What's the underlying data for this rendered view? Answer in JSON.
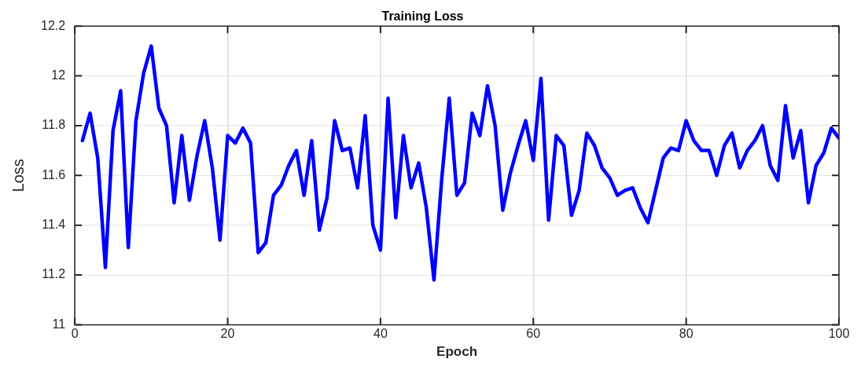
{
  "chart_data": {
    "type": "line",
    "title": "Training Loss",
    "xlabel": "Epoch",
    "ylabel": "Loss",
    "x": [
      1,
      2,
      3,
      4,
      5,
      6,
      7,
      8,
      9,
      10,
      11,
      12,
      13,
      14,
      15,
      16,
      17,
      18,
      19,
      20,
      21,
      22,
      23,
      24,
      25,
      26,
      27,
      28,
      29,
      30,
      31,
      32,
      33,
      34,
      35,
      36,
      37,
      38,
      39,
      40,
      41,
      42,
      43,
      44,
      45,
      46,
      47,
      48,
      49,
      50,
      51,
      52,
      53,
      54,
      55,
      56,
      57,
      58,
      59,
      60,
      61,
      62,
      63,
      64,
      65,
      66,
      67,
      68,
      69,
      70,
      71,
      72,
      73,
      74,
      75,
      76,
      77,
      78,
      79,
      80,
      81,
      82,
      83,
      84,
      85,
      86,
      87,
      88,
      89,
      90,
      91,
      92,
      93,
      94,
      95,
      96,
      97,
      98,
      99,
      100
    ],
    "series": [
      {
        "color": "#0000ff",
        "values": [
          11.74,
          11.85,
          11.67,
          11.23,
          11.78,
          11.94,
          11.31,
          11.82,
          12.01,
          12.12,
          11.87,
          11.8,
          11.49,
          11.76,
          11.5,
          11.68,
          11.82,
          11.63,
          11.34,
          11.76,
          11.73,
          11.79,
          11.73,
          11.29,
          11.33,
          11.52,
          11.56,
          11.64,
          11.7,
          11.52,
          11.74,
          11.38,
          11.51,
          11.82,
          11.7,
          11.71,
          11.55,
          11.84,
          11.4,
          11.3,
          11.91,
          11.43,
          11.76,
          11.55,
          11.65,
          11.47,
          11.18,
          11.58,
          11.91,
          11.52,
          11.57,
          11.85,
          11.76,
          11.96,
          11.8,
          11.46,
          11.61,
          11.72,
          11.82,
          11.66,
          11.99,
          11.42,
          11.76,
          11.72,
          11.44,
          11.54,
          11.77,
          11.72,
          11.63,
          11.59,
          11.52,
          11.54,
          11.55,
          11.47,
          11.41,
          11.54,
          11.67,
          11.71,
          11.7,
          11.82,
          11.74,
          11.7,
          11.7,
          11.6,
          11.72,
          11.77,
          11.63,
          11.7,
          11.74,
          11.8,
          11.64,
          11.58,
          11.88,
          11.67,
          11.78,
          11.49,
          11.64,
          11.69,
          11.79,
          11.75
        ]
      }
    ],
    "xlim": [
      0,
      100
    ],
    "xticks": [
      0,
      20,
      40,
      60,
      80,
      100
    ],
    "ylim": [
      11,
      12.2
    ],
    "yticks": [
      11,
      11.2,
      11.4,
      11.6,
      11.8,
      12,
      12.2
    ],
    "grid": true,
    "legend": false,
    "marker": "none",
    "line_style": "solid"
  }
}
